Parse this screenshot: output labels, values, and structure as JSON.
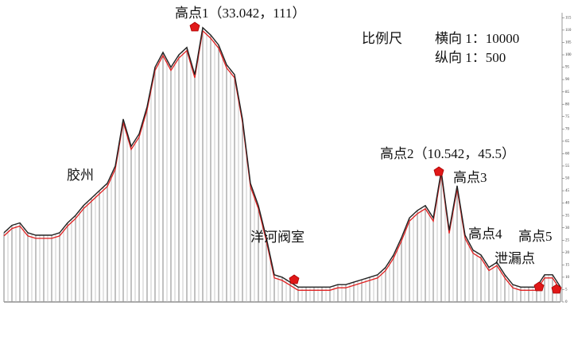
{
  "chart_data": {
    "type": "line",
    "values": [
      28,
      31,
      32,
      28,
      27,
      27,
      27,
      28,
      32,
      35,
      39,
      42,
      45,
      48,
      55,
      74,
      63,
      68,
      79,
      95,
      101,
      95,
      100,
      103,
      92,
      111,
      108,
      104,
      96,
      92,
      74,
      48,
      39,
      26,
      11,
      10,
      8,
      6,
      6,
      6,
      6,
      6,
      7,
      7,
      8,
      9,
      10,
      11,
      14,
      19,
      26,
      34,
      37,
      39,
      34,
      53,
      29,
      47,
      27,
      21,
      19,
      14,
      16,
      11,
      7,
      6,
      6,
      6,
      11,
      11,
      6
    ],
    "color": "#222222",
    "offset_color": "#e02020",
    "hatch_color": "#999999",
    "ylim": [
      0,
      117
    ],
    "yticks": [
      0,
      5,
      10,
      15,
      20,
      25,
      30,
      35,
      40,
      45,
      50,
      55,
      60,
      65,
      70,
      75,
      80,
      85,
      90,
      95,
      100,
      105,
      110,
      115
    ],
    "annotations": [
      "高点1（33.042，111）",
      "胶州",
      "洋河阀室",
      "高点2（10.542，45.5）",
      "高点3",
      "高点4",
      "高点5",
      "泄漏点"
    ],
    "scale": {
      "title": "比例尺",
      "horizontal": "横向  1：10000",
      "vertical": "纵向  1：500"
    }
  }
}
